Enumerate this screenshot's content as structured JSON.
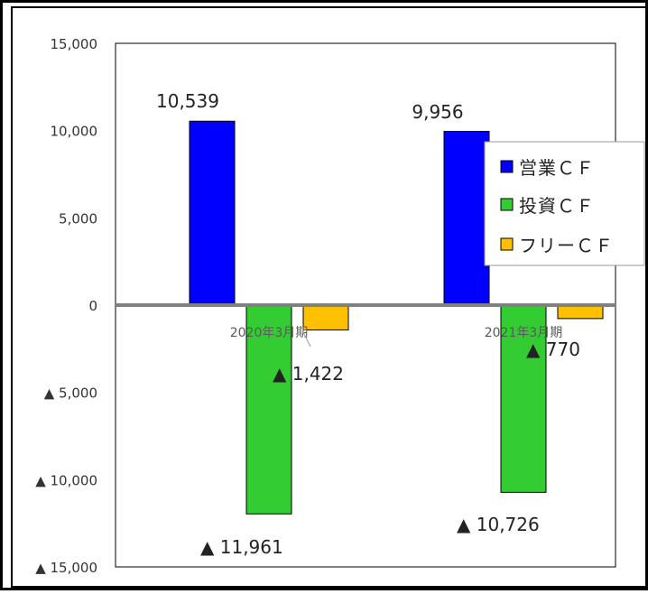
{
  "chart_data": {
    "type": "bar",
    "categories": [
      "2020年3月期",
      "2021年3月期"
    ],
    "series": [
      {
        "name": "営業ＣＦ",
        "color": "#0000ff",
        "values": [
          10539,
          9956
        ]
      },
      {
        "name": "投資ＣＦ",
        "color": "#33cc33",
        "values": [
          -11961,
          -10726
        ]
      },
      {
        "name": "フリーＣＦ",
        "color": "#ffc000",
        "values": [
          -1422,
          -770
        ]
      }
    ],
    "data_labels": [
      [
        "10,539",
        "▲ 11,961",
        "▲ 1,422"
      ],
      [
        "9,956",
        "▲ 10,726",
        "▲ 770"
      ]
    ],
    "y_ticks": [
      {
        "value": 15000,
        "label": "15,000"
      },
      {
        "value": 10000,
        "label": "10,000"
      },
      {
        "value": 5000,
        "label": "5,000"
      },
      {
        "value": 0,
        "label": "0"
      },
      {
        "value": -5000,
        "label": "▲ 5,000"
      },
      {
        "value": -10000,
        "label": "▲ 10,000"
      },
      {
        "value": -15000,
        "label": "▲ 15,000"
      }
    ],
    "ylim": [
      -15000,
      15000
    ],
    "grid": false,
    "legend_position": "right",
    "title": "",
    "xlabel": "",
    "ylabel": ""
  }
}
